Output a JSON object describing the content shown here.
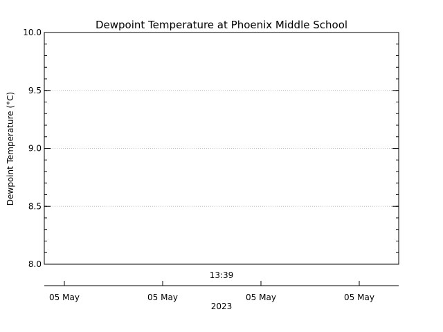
{
  "chart_data": {
    "type": "line",
    "title": "Dewpoint Temperature at Phoenix Middle School",
    "ylabel": "Dewpoint Temperature (°C)",
    "xlabel": "2023",
    "ylim": [
      8.0,
      10.0
    ],
    "yticks": [
      "8.0",
      "8.5",
      "9.0",
      "9.5",
      "10.0"
    ],
    "x_time_label": "13:39",
    "x_date_labels": [
      "05 May",
      "05 May",
      "05 May",
      "05 May"
    ],
    "grid": true,
    "series": []
  }
}
